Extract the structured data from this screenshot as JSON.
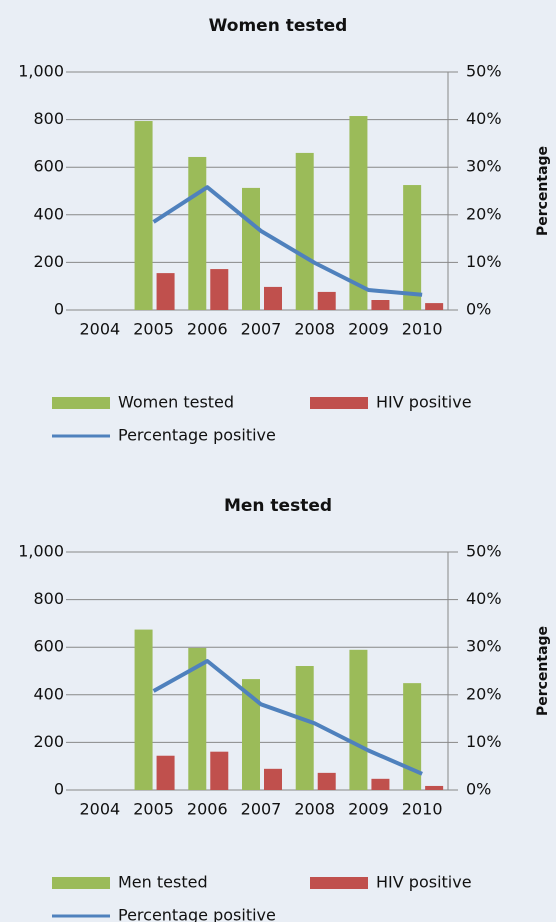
{
  "chart_data": [
    {
      "type": "bar",
      "title": "Women tested",
      "y2_label": "Percentage",
      "categories": [
        "2004",
        "2005",
        "2006",
        "2007",
        "2008",
        "2009",
        "2010"
      ],
      "series": [
        {
          "name": "Women tested",
          "color": "#9bbb59",
          "values": [
            null,
            794,
            643,
            513,
            660,
            815,
            525
          ]
        },
        {
          "name": "HIV positive",
          "color": "#c0504d",
          "values": [
            null,
            155,
            172,
            97,
            76,
            42,
            29
          ]
        },
        {
          "name": "Percentage positive",
          "type": "line",
          "axis": "y2",
          "color": "#4f81bd",
          "values": [
            null,
            18.5,
            25.8,
            16.6,
            9.9,
            4.2,
            3.2
          ]
        }
      ],
      "ylim": [
        0,
        1000
      ],
      "yticks": [
        0,
        200,
        400,
        600,
        800,
        {
          "value": 1000,
          "label": "1,000"
        }
      ],
      "y2lim": [
        0,
        50
      ],
      "y2ticks": [
        {
          "value": 0,
          "label": "0%"
        },
        {
          "value": 10,
          "label": "10%"
        },
        {
          "value": 20,
          "label": "20%"
        },
        {
          "value": 30,
          "label": "30%"
        },
        {
          "value": 40,
          "label": "40%"
        },
        {
          "value": 50,
          "label": "50%"
        }
      ],
      "grid": true,
      "legend": "bottom"
    },
    {
      "type": "bar",
      "title": "Men tested",
      "y2_label": "Percentage",
      "categories": [
        "2004",
        "2005",
        "2006",
        "2007",
        "2008",
        "2009",
        "2010"
      ],
      "series": [
        {
          "name": "Men tested",
          "color": "#9bbb59",
          "values": [
            null,
            674,
            597,
            466,
            521,
            589,
            449
          ]
        },
        {
          "name": "HIV positive",
          "color": "#c0504d",
          "values": [
            null,
            144,
            161,
            89,
            72,
            47,
            17
          ]
        },
        {
          "name": "Percentage positive",
          "type": "line",
          "axis": "y2",
          "color": "#4f81bd",
          "values": [
            null,
            20.8,
            27.1,
            18.0,
            14.0,
            8.3,
            3.4
          ]
        }
      ],
      "ylim": [
        0,
        1000
      ],
      "yticks": [
        0,
        200,
        400,
        600,
        800,
        {
          "value": 1000,
          "label": "1,000"
        }
      ],
      "y2lim": [
        0,
        50
      ],
      "y2ticks": [
        {
          "value": 0,
          "label": "0%"
        },
        {
          "value": 10,
          "label": "10%"
        },
        {
          "value": 20,
          "label": "20%"
        },
        {
          "value": 30,
          "label": "30%"
        },
        {
          "value": 40,
          "label": "40%"
        },
        {
          "value": 50,
          "label": "50%"
        }
      ],
      "grid": true,
      "legend": "bottom"
    }
  ]
}
